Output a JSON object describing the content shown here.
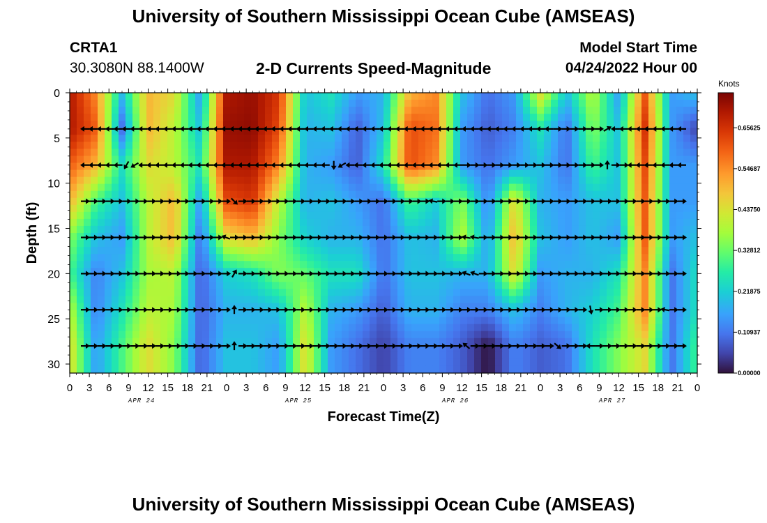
{
  "page": {
    "title": "University of Southern Mississippi Ocean Cube (AMSEAS)",
    "title_repeat": "University of Southern Mississippi Ocean Cube (AMSEAS)"
  },
  "station": {
    "name": "CRTA1",
    "coords": "30.3080N  88.1400W"
  },
  "model": {
    "start_label": "Model Start Time",
    "start_value": "04/24/2022 Hour 00"
  },
  "chart_data": {
    "type": "heatmap",
    "title": "2-D Currents Speed-Magnitude",
    "xlabel": "Forecast Time(Z)",
    "ylabel": "Depth (ft)",
    "ylim": [
      0,
      31
    ],
    "y_ticks": [
      0,
      5,
      10,
      15,
      20,
      25,
      30
    ],
    "x_range_hours": [
      0,
      96
    ],
    "x_tick_labels": [
      "0",
      "3",
      "6",
      "9",
      "12",
      "15",
      "18",
      "21",
      "0",
      "3",
      "6",
      "9",
      "12",
      "15",
      "18",
      "21",
      "0",
      "3",
      "6",
      "9",
      "12",
      "15",
      "18",
      "21",
      "0",
      "3",
      "6",
      "9",
      "12",
      "15",
      "18",
      "21",
      "0"
    ],
    "date_labels": [
      {
        "label": "APR 24",
        "hour": 11
      },
      {
        "label": "APR 25",
        "hour": 35
      },
      {
        "label": "APR 26",
        "hour": 59
      },
      {
        "label": "APR 27",
        "hour": 83
      }
    ],
    "colorbar": {
      "unit": "Knots",
      "min": 0,
      "max": 0.75,
      "tick_values": [
        0.65625,
        0.54687,
        0.4375,
        0.32812,
        0.21875,
        0.10937,
        0.0
      ],
      "tick_labels": [
        "0.65625",
        "0.54687",
        "0.43750",
        "0.32812",
        "0.21875",
        "0.10937",
        "0.00000"
      ]
    },
    "depth_levels_ft": [
      0,
      4,
      8,
      12,
      16,
      20,
      24,
      28
    ],
    "time_steps_h": [
      0,
      4,
      8,
      12,
      16,
      20,
      24,
      28,
      32,
      36,
      40,
      44,
      48,
      52,
      56,
      60,
      64,
      68,
      72,
      76,
      80,
      84,
      88,
      92,
      96
    ],
    "speed_knots": [
      [
        0.7,
        0.55,
        0.2,
        0.5,
        0.45,
        0.15,
        0.7,
        0.72,
        0.65,
        0.2,
        0.25,
        0.15,
        0.18,
        0.5,
        0.55,
        0.2,
        0.1,
        0.15,
        0.45,
        0.2,
        0.4,
        0.15,
        0.6,
        0.15,
        0.2
      ],
      [
        0.7,
        0.6,
        0.1,
        0.5,
        0.4,
        0.2,
        0.72,
        0.73,
        0.62,
        0.18,
        0.2,
        0.08,
        0.2,
        0.62,
        0.58,
        0.15,
        0.08,
        0.12,
        0.25,
        0.1,
        0.35,
        0.2,
        0.65,
        0.15,
        0.05
      ],
      [
        0.6,
        0.5,
        0.25,
        0.45,
        0.4,
        0.25,
        0.7,
        0.7,
        0.55,
        0.18,
        0.15,
        0.08,
        0.25,
        0.62,
        0.55,
        0.15,
        0.1,
        0.15,
        0.2,
        0.1,
        0.3,
        0.2,
        0.62,
        0.15,
        0.15
      ],
      [
        0.5,
        0.3,
        0.2,
        0.4,
        0.5,
        0.15,
        0.62,
        0.65,
        0.4,
        0.18,
        0.2,
        0.15,
        0.1,
        0.3,
        0.22,
        0.35,
        0.12,
        0.45,
        0.18,
        0.15,
        0.2,
        0.2,
        0.6,
        0.15,
        0.15
      ],
      [
        0.35,
        0.2,
        0.15,
        0.4,
        0.5,
        0.1,
        0.45,
        0.5,
        0.35,
        0.22,
        0.18,
        0.18,
        0.1,
        0.2,
        0.18,
        0.4,
        0.15,
        0.5,
        0.2,
        0.15,
        0.2,
        0.15,
        0.6,
        0.15,
        0.2
      ],
      [
        0.3,
        0.12,
        0.2,
        0.38,
        0.4,
        0.08,
        0.22,
        0.25,
        0.35,
        0.32,
        0.25,
        0.25,
        0.1,
        0.2,
        0.2,
        0.18,
        0.18,
        0.45,
        0.15,
        0.18,
        0.18,
        0.25,
        0.55,
        0.1,
        0.25
      ],
      [
        0.4,
        0.12,
        0.25,
        0.4,
        0.38,
        0.08,
        0.18,
        0.18,
        0.2,
        0.4,
        0.18,
        0.15,
        0.08,
        0.18,
        0.18,
        0.12,
        0.12,
        0.2,
        0.12,
        0.18,
        0.22,
        0.3,
        0.55,
        0.1,
        0.25
      ],
      [
        0.45,
        0.15,
        0.3,
        0.45,
        0.35,
        0.08,
        0.2,
        0.2,
        0.15,
        0.45,
        0.15,
        0.1,
        0.05,
        0.12,
        0.12,
        0.08,
        0.0,
        0.12,
        0.08,
        0.1,
        0.25,
        0.35,
        0.45,
        0.1,
        0.3
      ]
    ],
    "vector_rows": [
      {
        "depth": 4,
        "angles": [
          180,
          180,
          180,
          180,
          180,
          180,
          180,
          180,
          180,
          180,
          180,
          180,
          180,
          180,
          180,
          180,
          180,
          180,
          180,
          180,
          180,
          180,
          180,
          180,
          180,
          180,
          180,
          180,
          180,
          180,
          180,
          180,
          180,
          180,
          180,
          180,
          180,
          180,
          180,
          180,
          180,
          180,
          180,
          180,
          180,
          180,
          180,
          180,
          180,
          180,
          180,
          180,
          180,
          180,
          180,
          180,
          180,
          0,
          0,
          0,
          0,
          0,
          0,
          -30,
          180,
          180,
          180,
          180,
          180,
          180,
          180,
          180,
          180
        ]
      },
      {
        "depth": 8,
        "angles": [
          180,
          180,
          180,
          180,
          180,
          120,
          150,
          180,
          180,
          180,
          180,
          180,
          180,
          180,
          180,
          180,
          180,
          180,
          180,
          180,
          180,
          180,
          180,
          180,
          180,
          180,
          180,
          180,
          180,
          180,
          90,
          150,
          180,
          180,
          180,
          180,
          180,
          180,
          180,
          180,
          180,
          180,
          180,
          180,
          180,
          180,
          0,
          0,
          0,
          0,
          0,
          0,
          0,
          0,
          0,
          0,
          0,
          0,
          0,
          0,
          0,
          0,
          0,
          -90,
          0,
          0,
          180,
          180,
          180,
          180,
          180,
          180,
          180
        ]
      },
      {
        "depth": 12,
        "angles": [
          0,
          0,
          0,
          0,
          0,
          0,
          0,
          0,
          0,
          0,
          0,
          0,
          0,
          0,
          0,
          0,
          0,
          0,
          45,
          0,
          0,
          0,
          0,
          0,
          0,
          0,
          0,
          0,
          0,
          0,
          0,
          0,
          0,
          0,
          0,
          0,
          0,
          0,
          0,
          0,
          0,
          0,
          190,
          0,
          0,
          0,
          0,
          0,
          0,
          0,
          0,
          0,
          0,
          0,
          0,
          0,
          0,
          0,
          0,
          0,
          0,
          0,
          0,
          0,
          0,
          0,
          0,
          0,
          0,
          0,
          0,
          0,
          0
        ]
      },
      {
        "depth": 16,
        "angles": [
          0,
          0,
          0,
          0,
          0,
          0,
          0,
          0,
          0,
          0,
          0,
          0,
          0,
          0,
          0,
          0,
          0,
          200,
          0,
          0,
          0,
          0,
          0,
          0,
          0,
          0,
          0,
          0,
          0,
          0,
          0,
          0,
          0,
          0,
          0,
          0,
          0,
          0,
          0,
          0,
          0,
          0,
          0,
          0,
          0,
          0,
          190,
          190,
          0,
          0,
          0,
          0,
          0,
          0,
          0,
          0,
          0,
          0,
          0,
          0,
          0,
          0,
          0,
          0,
          0,
          0,
          0,
          0,
          0,
          0,
          0,
          0,
          0
        ]
      },
      {
        "depth": 20,
        "angles": [
          0,
          0,
          0,
          0,
          0,
          0,
          0,
          0,
          0,
          0,
          0,
          0,
          0,
          0,
          0,
          0,
          0,
          0,
          -60,
          0,
          0,
          0,
          0,
          0,
          0,
          0,
          0,
          0,
          0,
          0,
          0,
          0,
          0,
          0,
          0,
          0,
          0,
          0,
          0,
          0,
          0,
          0,
          0,
          0,
          0,
          0,
          200,
          200,
          0,
          0,
          0,
          0,
          0,
          0,
          0,
          0,
          0,
          0,
          0,
          0,
          0,
          0,
          0,
          0,
          0,
          0,
          0,
          0,
          0,
          0,
          0,
          0,
          0
        ]
      },
      {
        "depth": 24,
        "angles": [
          0,
          0,
          0,
          0,
          0,
          0,
          0,
          0,
          0,
          0,
          0,
          0,
          0,
          0,
          0,
          0,
          0,
          0,
          -90,
          0,
          0,
          0,
          0,
          0,
          0,
          0,
          0,
          0,
          0,
          0,
          0,
          0,
          0,
          0,
          0,
          0,
          0,
          0,
          0,
          0,
          0,
          0,
          0,
          0,
          0,
          0,
          0,
          0,
          0,
          0,
          0,
          0,
          0,
          0,
          0,
          0,
          0,
          0,
          0,
          0,
          0,
          80,
          0,
          0,
          0,
          0,
          0,
          0,
          0,
          0,
          190,
          0,
          0
        ]
      },
      {
        "depth": 28,
        "angles": [
          0,
          0,
          0,
          0,
          0,
          0,
          0,
          0,
          0,
          0,
          0,
          0,
          0,
          0,
          0,
          0,
          0,
          0,
          -90,
          0,
          0,
          0,
          0,
          0,
          0,
          0,
          0,
          0,
          0,
          0,
          0,
          0,
          0,
          0,
          0,
          0,
          0,
          0,
          0,
          0,
          0,
          0,
          0,
          0,
          0,
          0,
          220,
          0,
          0,
          0,
          0,
          0,
          0,
          0,
          0,
          0,
          0,
          40,
          0,
          0,
          0,
          180,
          0,
          0,
          0,
          0,
          0,
          0,
          0,
          0,
          0,
          0,
          0
        ]
      }
    ]
  }
}
